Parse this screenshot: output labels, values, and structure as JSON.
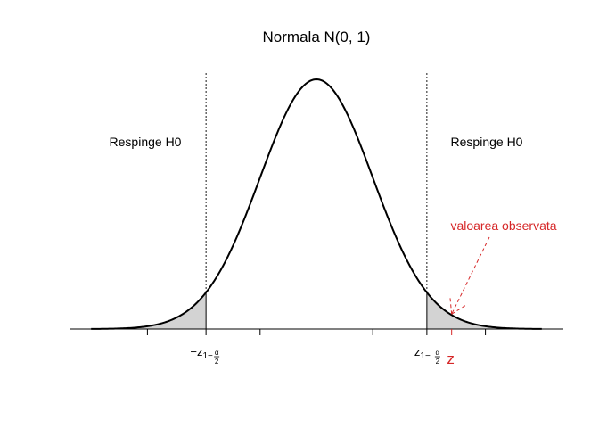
{
  "chart_data": {
    "type": "area",
    "title": "Normala N(0, 1)",
    "distribution": {
      "mean": 0,
      "sd": 1
    },
    "xlim": [
      -4.1,
      4.1
    ],
    "ylim": [
      0,
      0.4
    ],
    "curve_color": "#000000",
    "shade_color": "#d3d3d3",
    "critical_value": 1.96,
    "observed_z": 2.4,
    "x_ticks": [
      -3,
      -1,
      1,
      3
    ],
    "tick_labels": {
      "left": {
        "prefix": "−z",
        "sub_main": "1−",
        "sub_frac_num": "α",
        "sub_frac_den": "2"
      },
      "right": {
        "prefix": "z",
        "sub_main": "1−",
        "sub_frac_num": "α",
        "sub_frac_den": "2"
      },
      "observed": "z"
    },
    "annotations": {
      "reject_left": "Respinge H0",
      "reject_right": "Respinge H0",
      "observed_label": "valoarea observata",
      "observed_color": "#d62728"
    }
  }
}
